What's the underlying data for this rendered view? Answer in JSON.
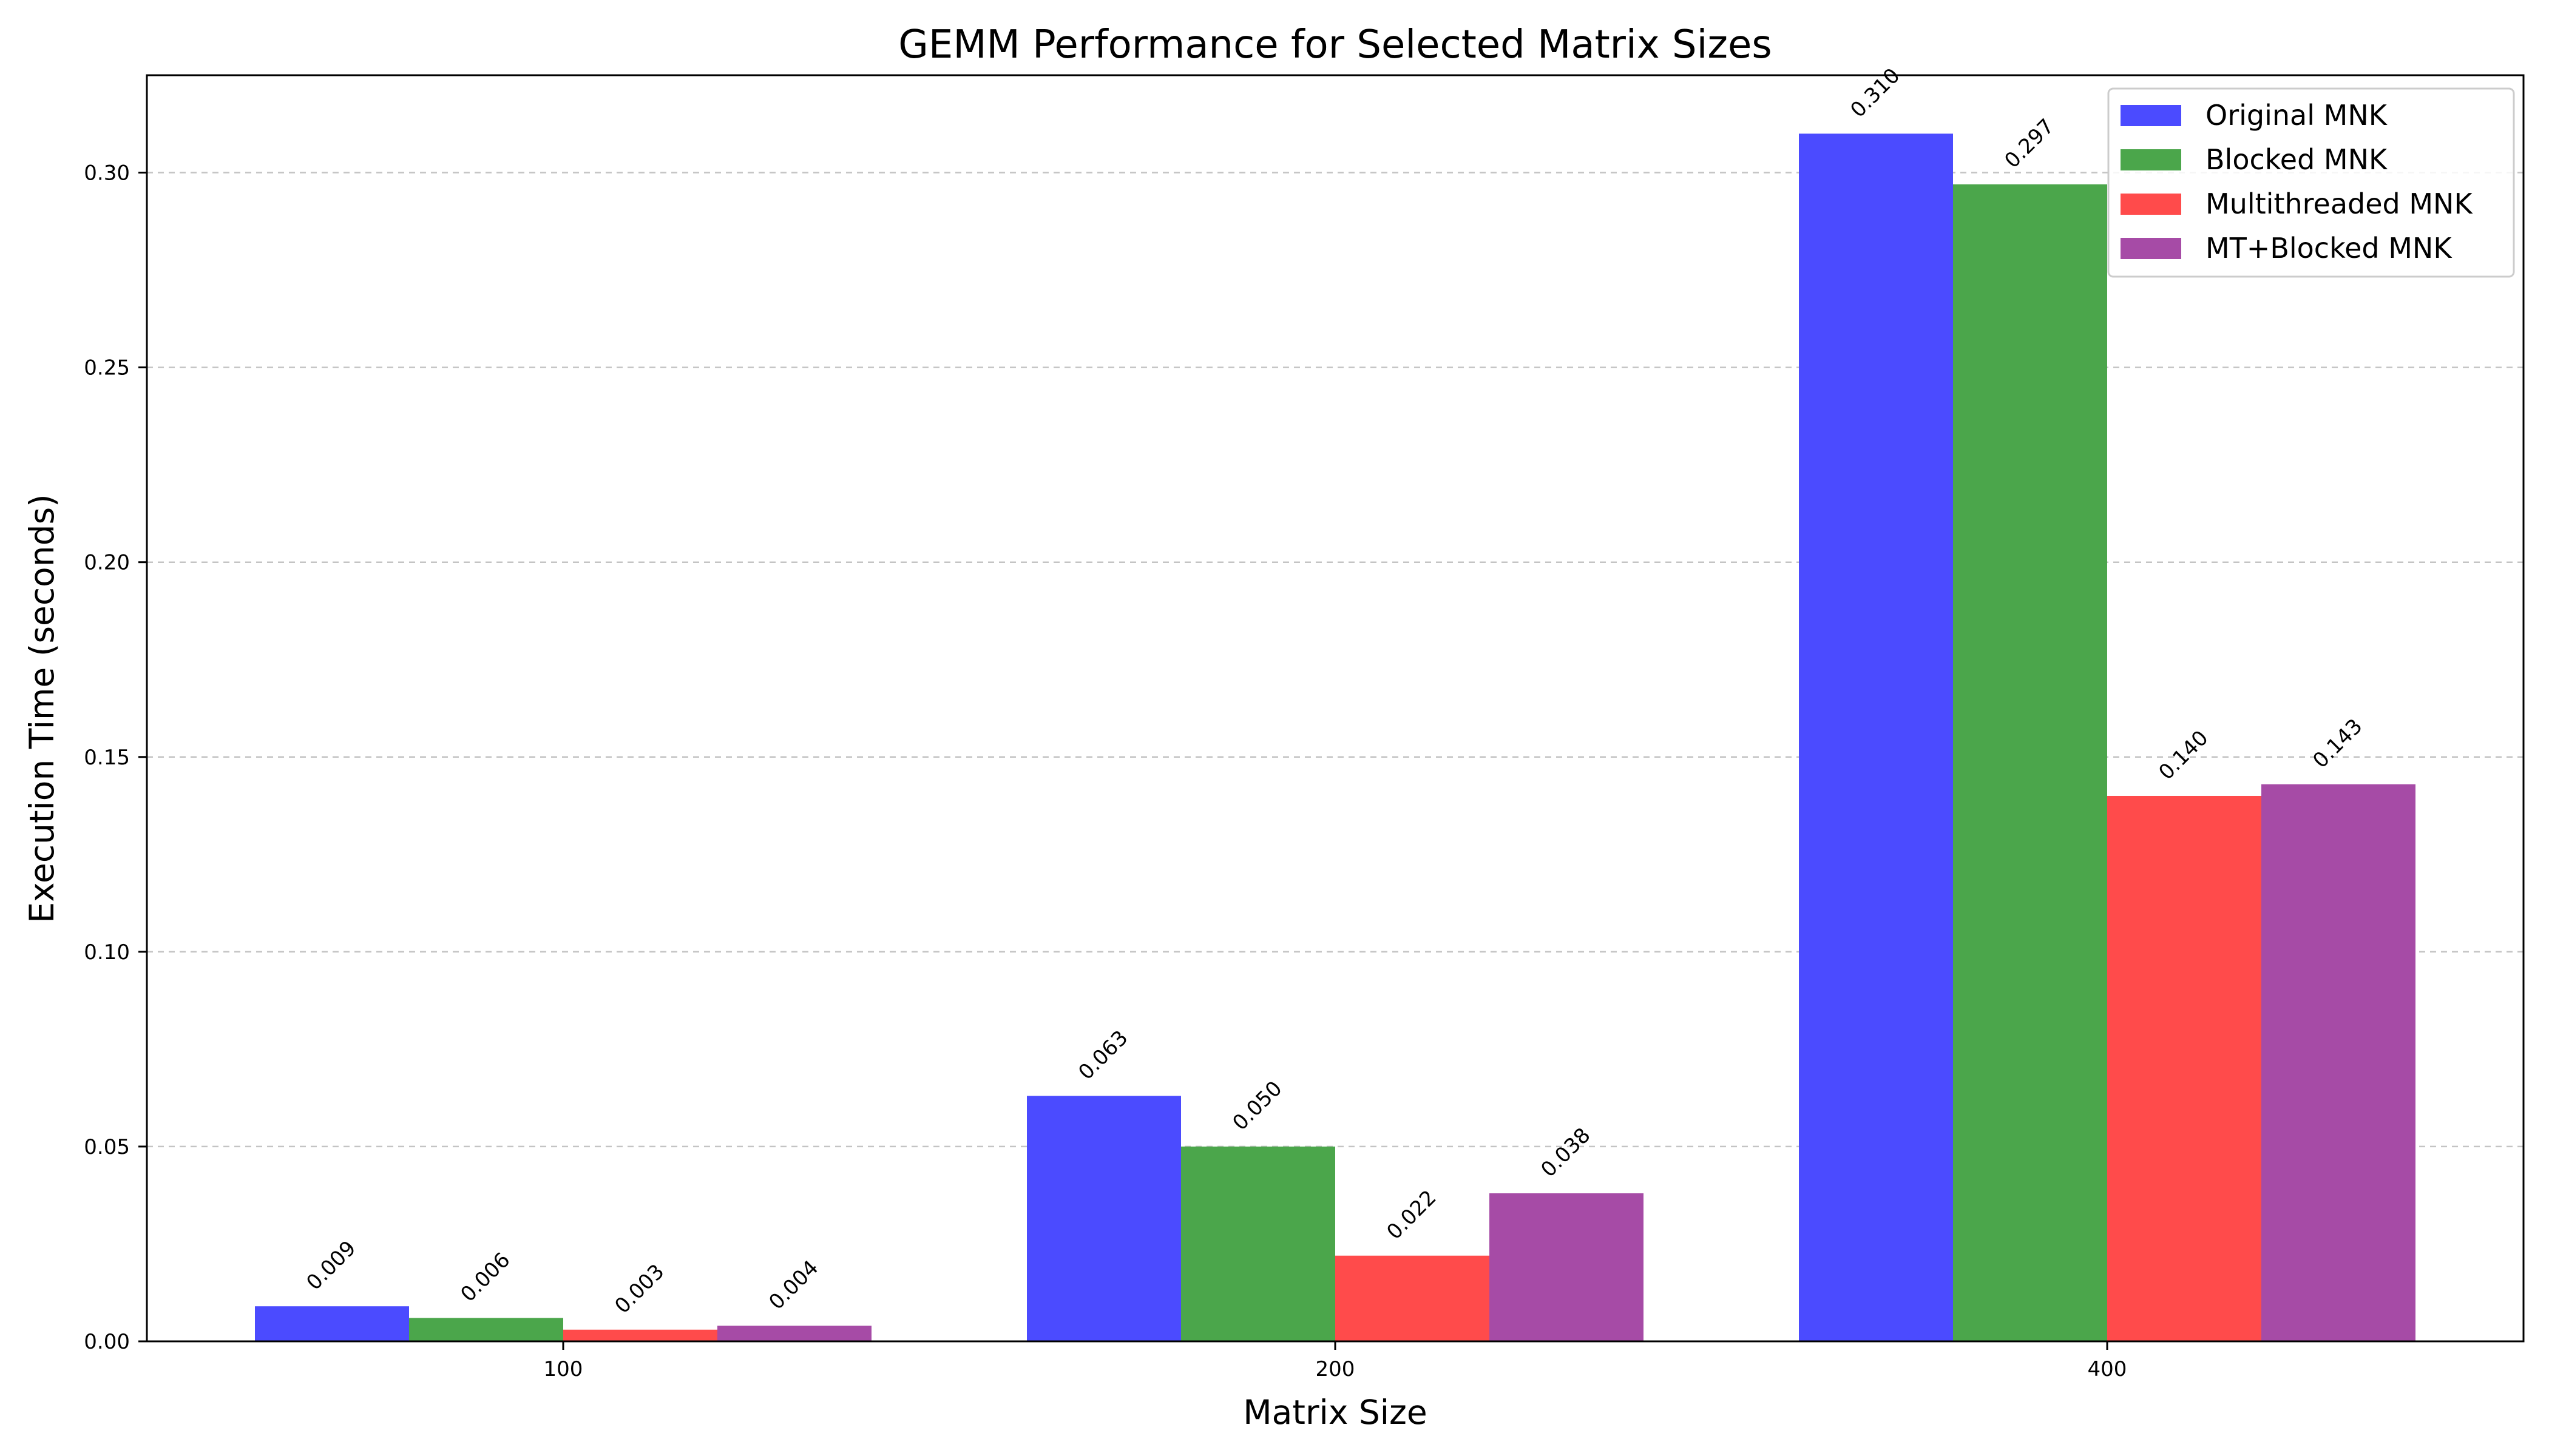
{
  "chart_data": {
    "type": "bar",
    "title": "GEMM Performance for Selected Matrix Sizes",
    "xlabel": "Matrix Size",
    "ylabel": "Execution Time (seconds)",
    "categories": [
      "100",
      "200",
      "400"
    ],
    "ylim": [
      0,
      0.325
    ],
    "yticks": [
      0.0,
      0.05,
      0.1,
      0.15,
      0.2,
      0.25,
      0.3
    ],
    "ytick_labels": [
      "0.00",
      "0.05",
      "0.10",
      "0.15",
      "0.20",
      "0.25",
      "0.30"
    ],
    "grid": "y-dashed",
    "legend_position": "top-right",
    "series": [
      {
        "name": "Original MNK",
        "color": "#4b4bff",
        "values": [
          0.009,
          0.063,
          0.31
        ],
        "labels": [
          "0.009",
          "0.063",
          "0.310"
        ]
      },
      {
        "name": "Blocked MNK",
        "color": "#4ba64b",
        "values": [
          0.006,
          0.05,
          0.297
        ],
        "labels": [
          "0.006",
          "0.050",
          "0.297"
        ]
      },
      {
        "name": "Multithreaded MNK",
        "color": "#ff4b4b",
        "values": [
          0.003,
          0.022,
          0.14
        ],
        "labels": [
          "0.003",
          "0.022",
          "0.140"
        ]
      },
      {
        "name": "MT+Blocked MNK",
        "color": "#a64ba6",
        "values": [
          0.004,
          0.038,
          0.143
        ],
        "labels": [
          "0.004",
          "0.038",
          "0.143"
        ]
      }
    ]
  }
}
